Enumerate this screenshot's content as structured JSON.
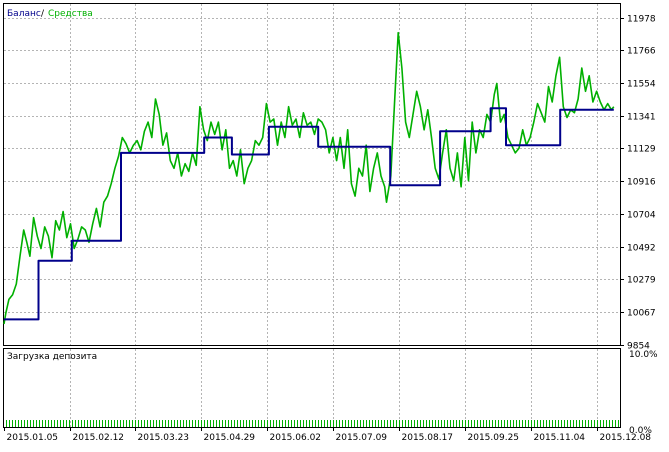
{
  "legend": {
    "balance_label": "Баланс",
    "separator": "/",
    "equity_label": "Средства",
    "balance_color": "#00008b",
    "equity_color": "#00b000"
  },
  "lower_panel": {
    "title": "Загрузка депозита",
    "top_label": "10.0%",
    "bottom_label": "0.0%"
  },
  "chart_data": {
    "type": "line",
    "y_ticks": [
      "11978",
      "11766",
      "11554",
      "11341",
      "11129",
      "10916",
      "10704",
      "10492",
      "10279",
      "10067",
      "9854"
    ],
    "y_tick_values": [
      11978,
      11766,
      11554,
      11341,
      11129,
      10916,
      10704,
      10492,
      10279,
      10067,
      9854
    ],
    "ylim": [
      9854,
      12066
    ],
    "x_ticks": [
      "2015.01.05",
      "2015.02.12",
      "2015.03.23",
      "2015.04.29",
      "2015.06.02",
      "2015.07.09",
      "2015.08.17",
      "2015.09.25",
      "2015.11.04",
      "2015.12.08"
    ],
    "x_tick_pos": [
      0,
      0.107,
      0.213,
      0.32,
      0.427,
      0.534,
      0.641,
      0.748,
      0.855,
      0.962
    ],
    "xlim": [
      0,
      1
    ],
    "grid": true,
    "series": [
      {
        "name": "Баланс",
        "color": "#00008b",
        "step": true,
        "points": [
          [
            0,
            10020
          ],
          [
            0.056,
            10020
          ],
          [
            0.056,
            10400
          ],
          [
            0.11,
            10400
          ],
          [
            0.11,
            10530
          ],
          [
            0.19,
            10530
          ],
          [
            0.19,
            11100
          ],
          [
            0.325,
            11100
          ],
          [
            0.325,
            11200
          ],
          [
            0.37,
            11200
          ],
          [
            0.37,
            11090
          ],
          [
            0.43,
            11090
          ],
          [
            0.43,
            11270
          ],
          [
            0.51,
            11270
          ],
          [
            0.51,
            11140
          ],
          [
            0.627,
            11140
          ],
          [
            0.627,
            10890
          ],
          [
            0.708,
            10890
          ],
          [
            0.708,
            11240
          ],
          [
            0.79,
            11240
          ],
          [
            0.79,
            11390
          ],
          [
            0.815,
            11390
          ],
          [
            0.815,
            11150
          ],
          [
            0.903,
            11150
          ],
          [
            0.903,
            11380
          ],
          [
            0.99,
            11380
          ]
        ]
      },
      {
        "name": "Средства",
        "color": "#00b000",
        "step": false,
        "points": [
          [
            0,
            9990
          ],
          [
            0.003,
            10060
          ],
          [
            0.008,
            10150
          ],
          [
            0.014,
            10180
          ],
          [
            0.02,
            10250
          ],
          [
            0.026,
            10430
          ],
          [
            0.032,
            10600
          ],
          [
            0.037,
            10520
          ],
          [
            0.042,
            10430
          ],
          [
            0.048,
            10680
          ],
          [
            0.054,
            10560
          ],
          [
            0.06,
            10480
          ],
          [
            0.066,
            10620
          ],
          [
            0.072,
            10560
          ],
          [
            0.078,
            10420
          ],
          [
            0.084,
            10660
          ],
          [
            0.09,
            10600
          ],
          [
            0.096,
            10720
          ],
          [
            0.102,
            10550
          ],
          [
            0.108,
            10640
          ],
          [
            0.114,
            10480
          ],
          [
            0.12,
            10540
          ],
          [
            0.126,
            10620
          ],
          [
            0.132,
            10600
          ],
          [
            0.138,
            10520
          ],
          [
            0.144,
            10640
          ],
          [
            0.15,
            10740
          ],
          [
            0.156,
            10620
          ],
          [
            0.162,
            10780
          ],
          [
            0.168,
            10820
          ],
          [
            0.174,
            10900
          ],
          [
            0.18,
            11000
          ],
          [
            0.186,
            11080
          ],
          [
            0.192,
            11200
          ],
          [
            0.198,
            11160
          ],
          [
            0.204,
            11100
          ],
          [
            0.21,
            11150
          ],
          [
            0.216,
            11180
          ],
          [
            0.222,
            11120
          ],
          [
            0.228,
            11240
          ],
          [
            0.234,
            11300
          ],
          [
            0.24,
            11200
          ],
          [
            0.246,
            11450
          ],
          [
            0.252,
            11350
          ],
          [
            0.258,
            11150
          ],
          [
            0.264,
            11230
          ],
          [
            0.27,
            11050
          ],
          [
            0.276,
            11000
          ],
          [
            0.282,
            11100
          ],
          [
            0.288,
            10950
          ],
          [
            0.294,
            11030
          ],
          [
            0.3,
            10980
          ],
          [
            0.306,
            11100
          ],
          [
            0.312,
            11020
          ],
          [
            0.318,
            11400
          ],
          [
            0.324,
            11250
          ],
          [
            0.33,
            11180
          ],
          [
            0.336,
            11300
          ],
          [
            0.342,
            11220
          ],
          [
            0.348,
            11300
          ],
          [
            0.354,
            11120
          ],
          [
            0.36,
            11250
          ],
          [
            0.366,
            11000
          ],
          [
            0.372,
            11050
          ],
          [
            0.378,
            10950
          ],
          [
            0.384,
            11120
          ],
          [
            0.39,
            10900
          ],
          [
            0.396,
            11000
          ],
          [
            0.402,
            11050
          ],
          [
            0.408,
            11180
          ],
          [
            0.414,
            11150
          ],
          [
            0.42,
            11200
          ],
          [
            0.426,
            11420
          ],
          [
            0.432,
            11300
          ],
          [
            0.438,
            11320
          ],
          [
            0.444,
            11150
          ],
          [
            0.45,
            11300
          ],
          [
            0.456,
            11200
          ],
          [
            0.462,
            11400
          ],
          [
            0.468,
            11280
          ],
          [
            0.474,
            11320
          ],
          [
            0.48,
            11200
          ],
          [
            0.486,
            11360
          ],
          [
            0.492,
            11280
          ],
          [
            0.498,
            11300
          ],
          [
            0.504,
            11220
          ],
          [
            0.51,
            11320
          ],
          [
            0.516,
            11300
          ],
          [
            0.522,
            11250
          ],
          [
            0.528,
            11100
          ],
          [
            0.534,
            11200
          ],
          [
            0.54,
            11050
          ],
          [
            0.546,
            11200
          ],
          [
            0.552,
            11000
          ],
          [
            0.558,
            11250
          ],
          [
            0.564,
            10900
          ],
          [
            0.57,
            10820
          ],
          [
            0.576,
            11000
          ],
          [
            0.582,
            10950
          ],
          [
            0.588,
            11150
          ],
          [
            0.594,
            10850
          ],
          [
            0.6,
            11000
          ],
          [
            0.606,
            11100
          ],
          [
            0.612,
            10950
          ],
          [
            0.618,
            10880
          ],
          [
            0.621,
            10780
          ],
          [
            0.628,
            10950
          ],
          [
            0.634,
            11420
          ],
          [
            0.64,
            11880
          ],
          [
            0.646,
            11650
          ],
          [
            0.652,
            11300
          ],
          [
            0.658,
            11200
          ],
          [
            0.664,
            11350
          ],
          [
            0.67,
            11500
          ],
          [
            0.676,
            11400
          ],
          [
            0.682,
            11250
          ],
          [
            0.688,
            11380
          ],
          [
            0.694,
            11200
          ],
          [
            0.7,
            11000
          ],
          [
            0.706,
            10930
          ],
          [
            0.712,
            11100
          ],
          [
            0.718,
            11250
          ],
          [
            0.724,
            11000
          ],
          [
            0.73,
            10920
          ],
          [
            0.736,
            11100
          ],
          [
            0.742,
            10880
          ],
          [
            0.748,
            11200
          ],
          [
            0.754,
            10920
          ],
          [
            0.76,
            11300
          ],
          [
            0.766,
            11100
          ],
          [
            0.772,
            11250
          ],
          [
            0.778,
            11200
          ],
          [
            0.784,
            11350
          ],
          [
            0.79,
            11300
          ],
          [
            0.796,
            11480
          ],
          [
            0.8,
            11550
          ],
          [
            0.806,
            11300
          ],
          [
            0.812,
            11350
          ],
          [
            0.818,
            11200
          ],
          [
            0.824,
            11150
          ],
          [
            0.83,
            11100
          ],
          [
            0.836,
            11130
          ],
          [
            0.842,
            11250
          ],
          [
            0.848,
            11150
          ],
          [
            0.854,
            11200
          ],
          [
            0.86,
            11300
          ],
          [
            0.866,
            11420
          ],
          [
            0.872,
            11360
          ],
          [
            0.878,
            11300
          ],
          [
            0.884,
            11530
          ],
          [
            0.89,
            11430
          ],
          [
            0.896,
            11600
          ],
          [
            0.902,
            11720
          ],
          [
            0.908,
            11400
          ],
          [
            0.914,
            11330
          ],
          [
            0.92,
            11380
          ],
          [
            0.926,
            11360
          ],
          [
            0.932,
            11450
          ],
          [
            0.938,
            11650
          ],
          [
            0.944,
            11500
          ],
          [
            0.95,
            11600
          ],
          [
            0.956,
            11430
          ],
          [
            0.962,
            11500
          ],
          [
            0.968,
            11430
          ],
          [
            0.974,
            11380
          ],
          [
            0.98,
            11420
          ],
          [
            0.986,
            11380
          ],
          [
            0.99,
            11400
          ]
        ]
      }
    ]
  }
}
